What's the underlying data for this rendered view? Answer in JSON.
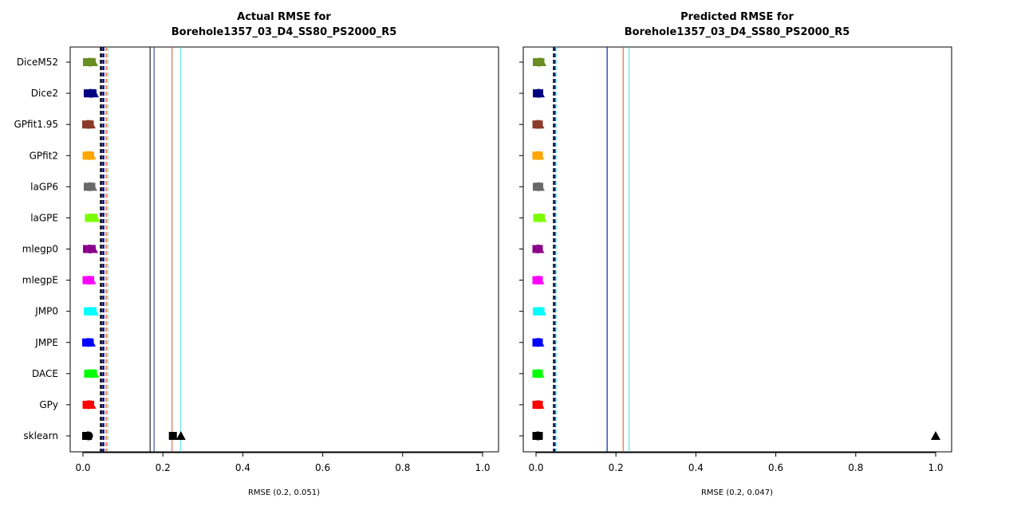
{
  "chart_data": [
    {
      "type": "scatter",
      "title": [
        "Actual RMSE for",
        "Borehole1357_03_D4_SS80_PS2000_R5"
      ],
      "xlabel": "RMSE (0.2, 0.051)",
      "xlim": [
        0,
        1
      ],
      "xticks": [
        0.0,
        0.2,
        0.4,
        0.6,
        0.8,
        1.0
      ],
      "xtick_labels": [
        "0.0",
        "0.2",
        "0.4",
        "0.6",
        "0.8",
        "1.0"
      ],
      "grid": false,
      "categories": [
        "DiceM52",
        "Dice2",
        "GPfit1.95",
        "GPfit2",
        "laGP6",
        "laGPE",
        "mlegp0",
        "mlegpE",
        "JMP0",
        "JMPE",
        "DACE",
        "GPy",
        "sklearn"
      ],
      "series": [
        {
          "category": "DiceM52",
          "color": "#6b8e23",
          "values": [
            0.01,
            0.014,
            0.018,
            0.022,
            0.026
          ]
        },
        {
          "category": "Dice2",
          "color": "#000080",
          "values": [
            0.012,
            0.016,
            0.02,
            0.024,
            0.028
          ]
        },
        {
          "category": "GPfit1.95",
          "color": "#8b3a2a",
          "values": [
            0.008,
            0.011,
            0.014,
            0.017,
            0.02
          ]
        },
        {
          "category": "GPfit2",
          "color": "#ffa500",
          "values": [
            0.009,
            0.012,
            0.015,
            0.018,
            0.021
          ]
        },
        {
          "category": "laGP6",
          "color": "#696969",
          "values": [
            0.012,
            0.015,
            0.018,
            0.021,
            0.024
          ]
        },
        {
          "category": "laGPE",
          "color": "#7cfc00",
          "values": [
            0.015,
            0.019,
            0.023,
            0.027,
            0.031
          ]
        },
        {
          "category": "mlegp0",
          "color": "#8b008b",
          "values": [
            0.01,
            0.014,
            0.018,
            0.022,
            0.026
          ]
        },
        {
          "category": "mlegpE",
          "color": "#ff00ff",
          "values": [
            0.009,
            0.012,
            0.015,
            0.018,
            0.021
          ]
        },
        {
          "category": "JMP0",
          "color": "#00ffff",
          "values": [
            0.012,
            0.016,
            0.02,
            0.024,
            0.028
          ]
        },
        {
          "category": "JMPE",
          "color": "#0000ff",
          "values": [
            0.008,
            0.011,
            0.014,
            0.017,
            0.02
          ]
        },
        {
          "category": "DACE",
          "color": "#00ff00",
          "values": [
            0.013,
            0.017,
            0.021,
            0.025,
            0.029
          ]
        },
        {
          "category": "GPy",
          "color": "#ff0000",
          "values": [
            0.009,
            0.012,
            0.015,
            0.018,
            0.021
          ]
        },
        {
          "category": "sklearn",
          "color": "#000000",
          "values": [
            0.008,
            0.011,
            0.014,
            0.225,
            0.245
          ]
        }
      ],
      "reference_lines": [
        {
          "x": 0.045,
          "color": "#000000",
          "style": "dashed",
          "width": 2.5
        },
        {
          "x": 0.051,
          "color": "#000080",
          "style": "dashed",
          "width": 2.5
        },
        {
          "x": 0.058,
          "color": "#ff4500",
          "style": "dashed",
          "width": 1.2
        },
        {
          "x": 0.062,
          "color": "#40e0d0",
          "style": "dashed",
          "width": 1.2
        },
        {
          "x": 0.168,
          "color": "#000000",
          "style": "solid",
          "width": 1
        },
        {
          "x": 0.178,
          "color": "#1e3a8a",
          "style": "solid",
          "width": 1
        },
        {
          "x": 0.223,
          "color": "#e05030",
          "style": "solid",
          "width": 1
        },
        {
          "x": 0.245,
          "color": "#40e0e0",
          "style": "solid",
          "width": 1
        }
      ]
    },
    {
      "type": "scatter",
      "title": [
        "Predicted RMSE for",
        "Borehole1357_03_D4_SS80_PS2000_R5"
      ],
      "xlabel": "RMSE (0.2, 0.047)",
      "xlim": [
        0,
        1
      ],
      "xticks": [
        0.0,
        0.2,
        0.4,
        0.6,
        0.8,
        1.0
      ],
      "xtick_labels": [
        "0.0",
        "0.2",
        "0.4",
        "0.6",
        "0.8",
        "1.0"
      ],
      "grid": false,
      "categories": [
        "DiceM52",
        "Dice2",
        "GPfit1.95",
        "GPfit2",
        "laGP6",
        "laGPE",
        "mlegp0",
        "mlegpE",
        "JMP0",
        "JMPE",
        "DACE",
        "GPy",
        "sklearn"
      ],
      "series": [
        {
          "category": "DiceM52",
          "color": "#6b8e23",
          "values": [
            0.002,
            0.005,
            0.008,
            0.011,
            0.014
          ]
        },
        {
          "category": "Dice2",
          "color": "#000080",
          "values": [
            0.002,
            0.004,
            0.006,
            0.008,
            0.01
          ]
        },
        {
          "category": "GPfit1.95",
          "color": "#8b3a2a",
          "values": [
            0.001,
            0.003,
            0.005,
            0.007,
            0.009
          ]
        },
        {
          "category": "GPfit2",
          "color": "#ffa500",
          "values": [
            0.001,
            0.003,
            0.005,
            0.007,
            0.009
          ]
        },
        {
          "category": "laGP6",
          "color": "#696969",
          "values": [
            0.002,
            0.004,
            0.006,
            0.008,
            0.01
          ]
        },
        {
          "category": "laGPE",
          "color": "#7cfc00",
          "values": [
            0.003,
            0.006,
            0.009,
            0.012,
            0.015
          ]
        },
        {
          "category": "mlegp0",
          "color": "#8b008b",
          "values": [
            0.001,
            0.003,
            0.005,
            0.007,
            0.009
          ]
        },
        {
          "category": "mlegpE",
          "color": "#ff00ff",
          "values": [
            0.001,
            0.003,
            0.005,
            0.007,
            0.009
          ]
        },
        {
          "category": "JMP0",
          "color": "#00ffff",
          "values": [
            0.002,
            0.005,
            0.008,
            0.011,
            0.014
          ]
        },
        {
          "category": "JMPE",
          "color": "#0000ff",
          "values": [
            0.001,
            0.003,
            0.005,
            0.007,
            0.009
          ]
        },
        {
          "category": "DACE",
          "color": "#00ff00",
          "values": [
            0.001,
            0.003,
            0.005,
            0.007,
            0.009
          ]
        },
        {
          "category": "GPy",
          "color": "#ff0000",
          "values": [
            0.001,
            0.003,
            0.005,
            0.007,
            0.009
          ]
        },
        {
          "category": "sklearn",
          "color": "#000000",
          "values": [
            0.001,
            0.003,
            0.005,
            0.007,
            1.0
          ]
        }
      ],
      "reference_lines": [
        {
          "x": 0.045,
          "color": "#000000",
          "style": "dashed",
          "width": 2.5
        },
        {
          "x": 0.048,
          "color": "#1e3a8a",
          "style": "dashed",
          "width": 2.5
        },
        {
          "x": 0.05,
          "color": "#40e0d0",
          "style": "dashed",
          "width": 1.2
        },
        {
          "x": 0.178,
          "color": "#003399",
          "style": "solid",
          "width": 1.2
        },
        {
          "x": 0.218,
          "color": "#e05030",
          "style": "solid",
          "width": 1
        },
        {
          "x": 0.233,
          "color": "#40e0e0",
          "style": "solid",
          "width": 1
        }
      ]
    }
  ]
}
